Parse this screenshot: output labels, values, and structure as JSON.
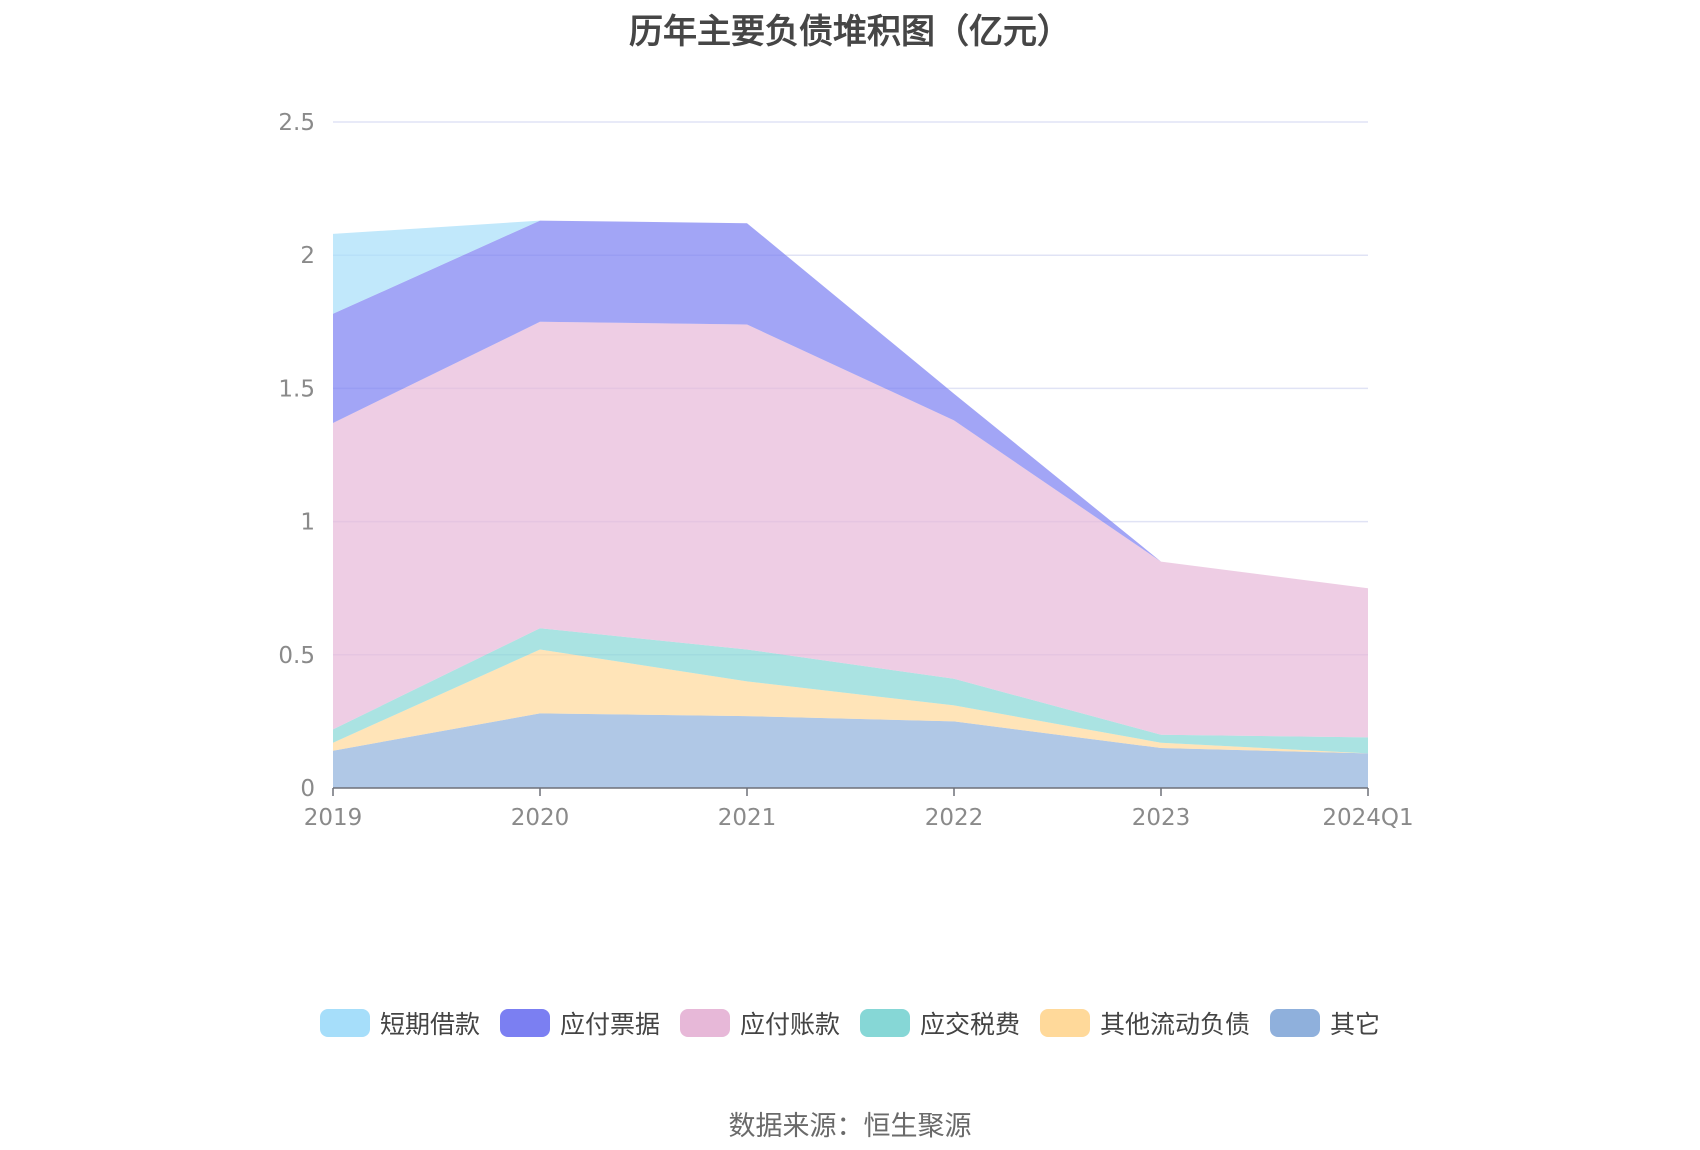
{
  "title": "历年主要负债堆积图（亿元）",
  "source": "数据来源：恒生聚源",
  "chart_data": {
    "type": "area",
    "stacked": true,
    "categories": [
      "2019",
      "2020",
      "2021",
      "2022",
      "2023",
      "2024Q1"
    ],
    "ylim": [
      0,
      2.5
    ],
    "yticks": [
      "0",
      "0.5",
      "1",
      "1.5",
      "2",
      "2.5"
    ],
    "grid": true,
    "legend_position": "bottom",
    "series": [
      {
        "name": "其它",
        "color": "#8fb0dc",
        "values": [
          0.14,
          0.28,
          0.27,
          0.25,
          0.15,
          0.13
        ]
      },
      {
        "name": "其他流动负债",
        "color": "#ffd99a",
        "values": [
          0.03,
          0.24,
          0.13,
          0.06,
          0.02,
          0.0
        ]
      },
      {
        "name": "应交税费",
        "color": "#86d7d6",
        "values": [
          0.05,
          0.08,
          0.12,
          0.1,
          0.03,
          0.06
        ]
      },
      {
        "name": "应付账款",
        "color": "#e7b8d8",
        "values": [
          1.15,
          1.15,
          1.22,
          0.97,
          0.65,
          0.56
        ]
      },
      {
        "name": "应付票据",
        "color": "#7b7ff2",
        "values": [
          0.41,
          0.38,
          0.38,
          0.1,
          0.0,
          0.0
        ]
      },
      {
        "name": "短期借款",
        "color": "#a6defa",
        "values": [
          0.3,
          0.0,
          0.0,
          0.0,
          0.0,
          0.0
        ]
      }
    ],
    "legend_order": [
      "短期借款",
      "应付票据",
      "应付账款",
      "应交税费",
      "其他流动负债",
      "其它"
    ]
  }
}
